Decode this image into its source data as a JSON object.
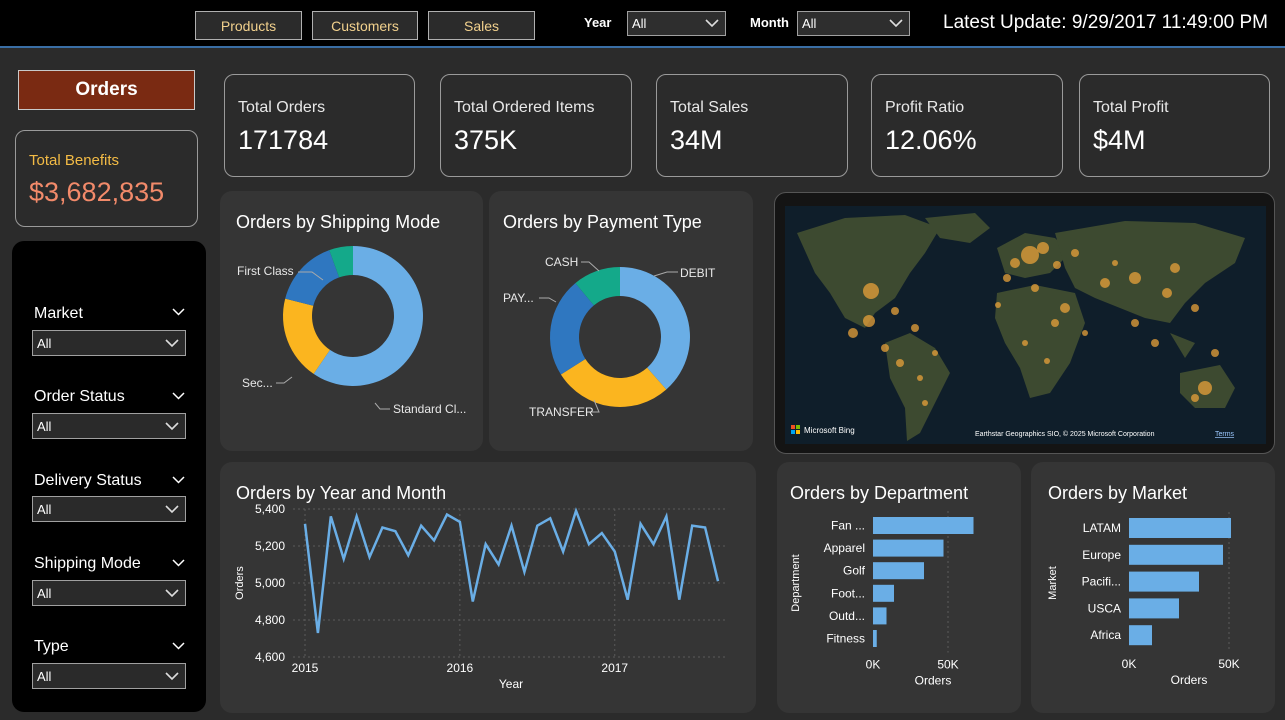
{
  "topbar": {
    "nav": [
      "Products",
      "Customers",
      "Sales"
    ],
    "year_label": "Year",
    "year_value": "All",
    "month_label": "Month",
    "month_value": "All",
    "latest_update": "Latest Update: 9/29/2017 11:49:00 PM"
  },
  "left": {
    "orders_button": "Orders",
    "benefits_label": "Total Benefits",
    "benefits_value": "$3,682,835",
    "filters": [
      {
        "label": "Market",
        "value": "All"
      },
      {
        "label": "Order Status",
        "value": "All"
      },
      {
        "label": "Delivery Status",
        "value": "All"
      },
      {
        "label": "Shipping Mode",
        "value": "All"
      },
      {
        "label": "Type",
        "value": "All"
      }
    ]
  },
  "kpis": [
    {
      "label": "Total Orders",
      "value": "171784"
    },
    {
      "label": "Total Ordered Items",
      "value": "375K"
    },
    {
      "label": "Total Sales",
      "value": "34M"
    },
    {
      "label": "Profit Ratio",
      "value": "12.06%"
    },
    {
      "label": "Total Profit",
      "value": "$4M"
    }
  ],
  "map": {
    "attribution_logo": "Microsoft Bing",
    "attribution_text": "Earthstar Geographics SIO, © 2025 Microsoft Corporation",
    "terms": "Terms"
  },
  "colors": {
    "blue_light": "#6aaee6",
    "blue_dark": "#2f77c0",
    "yellow": "#fbb51f",
    "teal": "#14a98a",
    "orders_btn": "#7a2a12",
    "benefits_value": "#f28a6a"
  },
  "chart_data": [
    {
      "type": "pie",
      "title": "Orders by Shipping Mode",
      "categories": [
        "Standard Cl...",
        "Sec...",
        "First Class",
        ""
      ],
      "values": [
        59.5,
        19.5,
        15.5,
        5.5
      ]
    },
    {
      "type": "pie",
      "title": "Orders by Payment Type",
      "categories": [
        "DEBIT",
        "TRANSFER",
        "PAY...",
        "CASH"
      ],
      "values": [
        38.5,
        27.5,
        23,
        11
      ]
    },
    {
      "type": "line",
      "title": "Orders by Year and Month",
      "xlabel": "Year",
      "ylabel": "Orders",
      "ylim": [
        4600,
        5400
      ],
      "y_ticks": [
        "5,400",
        "5,200",
        "5,000",
        "4,800",
        "4,600"
      ],
      "x_ticks": [
        "2015",
        "2016",
        "2017"
      ],
      "x": [
        "2015-01",
        "2015-02",
        "2015-03",
        "2015-04",
        "2015-05",
        "2015-06",
        "2015-07",
        "2015-08",
        "2015-09",
        "2015-10",
        "2015-11",
        "2015-12",
        "2016-01",
        "2016-02",
        "2016-03",
        "2016-04",
        "2016-05",
        "2016-06",
        "2016-07",
        "2016-08",
        "2016-09",
        "2016-10",
        "2016-11",
        "2016-12",
        "2017-01",
        "2017-02",
        "2017-03",
        "2017-04",
        "2017-05",
        "2017-06",
        "2017-07",
        "2017-08",
        "2017-09"
      ],
      "values": [
        5320,
        4730,
        5360,
        5130,
        5360,
        5140,
        5300,
        5280,
        5150,
        5310,
        5230,
        5370,
        5330,
        4900,
        5210,
        5100,
        5310,
        5060,
        5310,
        5350,
        5170,
        5390,
        5210,
        5270,
        5170,
        4910,
        5320,
        5210,
        5360,
        4910,
        5310,
        5300,
        5010
      ]
    },
    {
      "type": "bar",
      "title": "Orders by Department",
      "categories": [
        "Fan ...",
        "Apparel",
        "Golf",
        "Foot...",
        "Outd...",
        "Fitness"
      ],
      "values": [
        67000,
        47000,
        34000,
        14000,
        9000,
        2500
      ],
      "xlabel": "Orders",
      "ylabel": "Department",
      "x_ticks": [
        "0K",
        "50K"
      ],
      "xlim": [
        0,
        72000
      ]
    },
    {
      "type": "bar",
      "title": "Orders by Market",
      "categories": [
        "LATAM",
        "Europe",
        "Pacifi...",
        "USCA",
        "Africa"
      ],
      "values": [
        51000,
        47000,
        35000,
        25000,
        11500
      ],
      "xlabel": "Orders",
      "ylabel": "Market",
      "x_ticks": [
        "0K",
        "50K"
      ],
      "xlim": [
        0,
        55000
      ]
    }
  ]
}
